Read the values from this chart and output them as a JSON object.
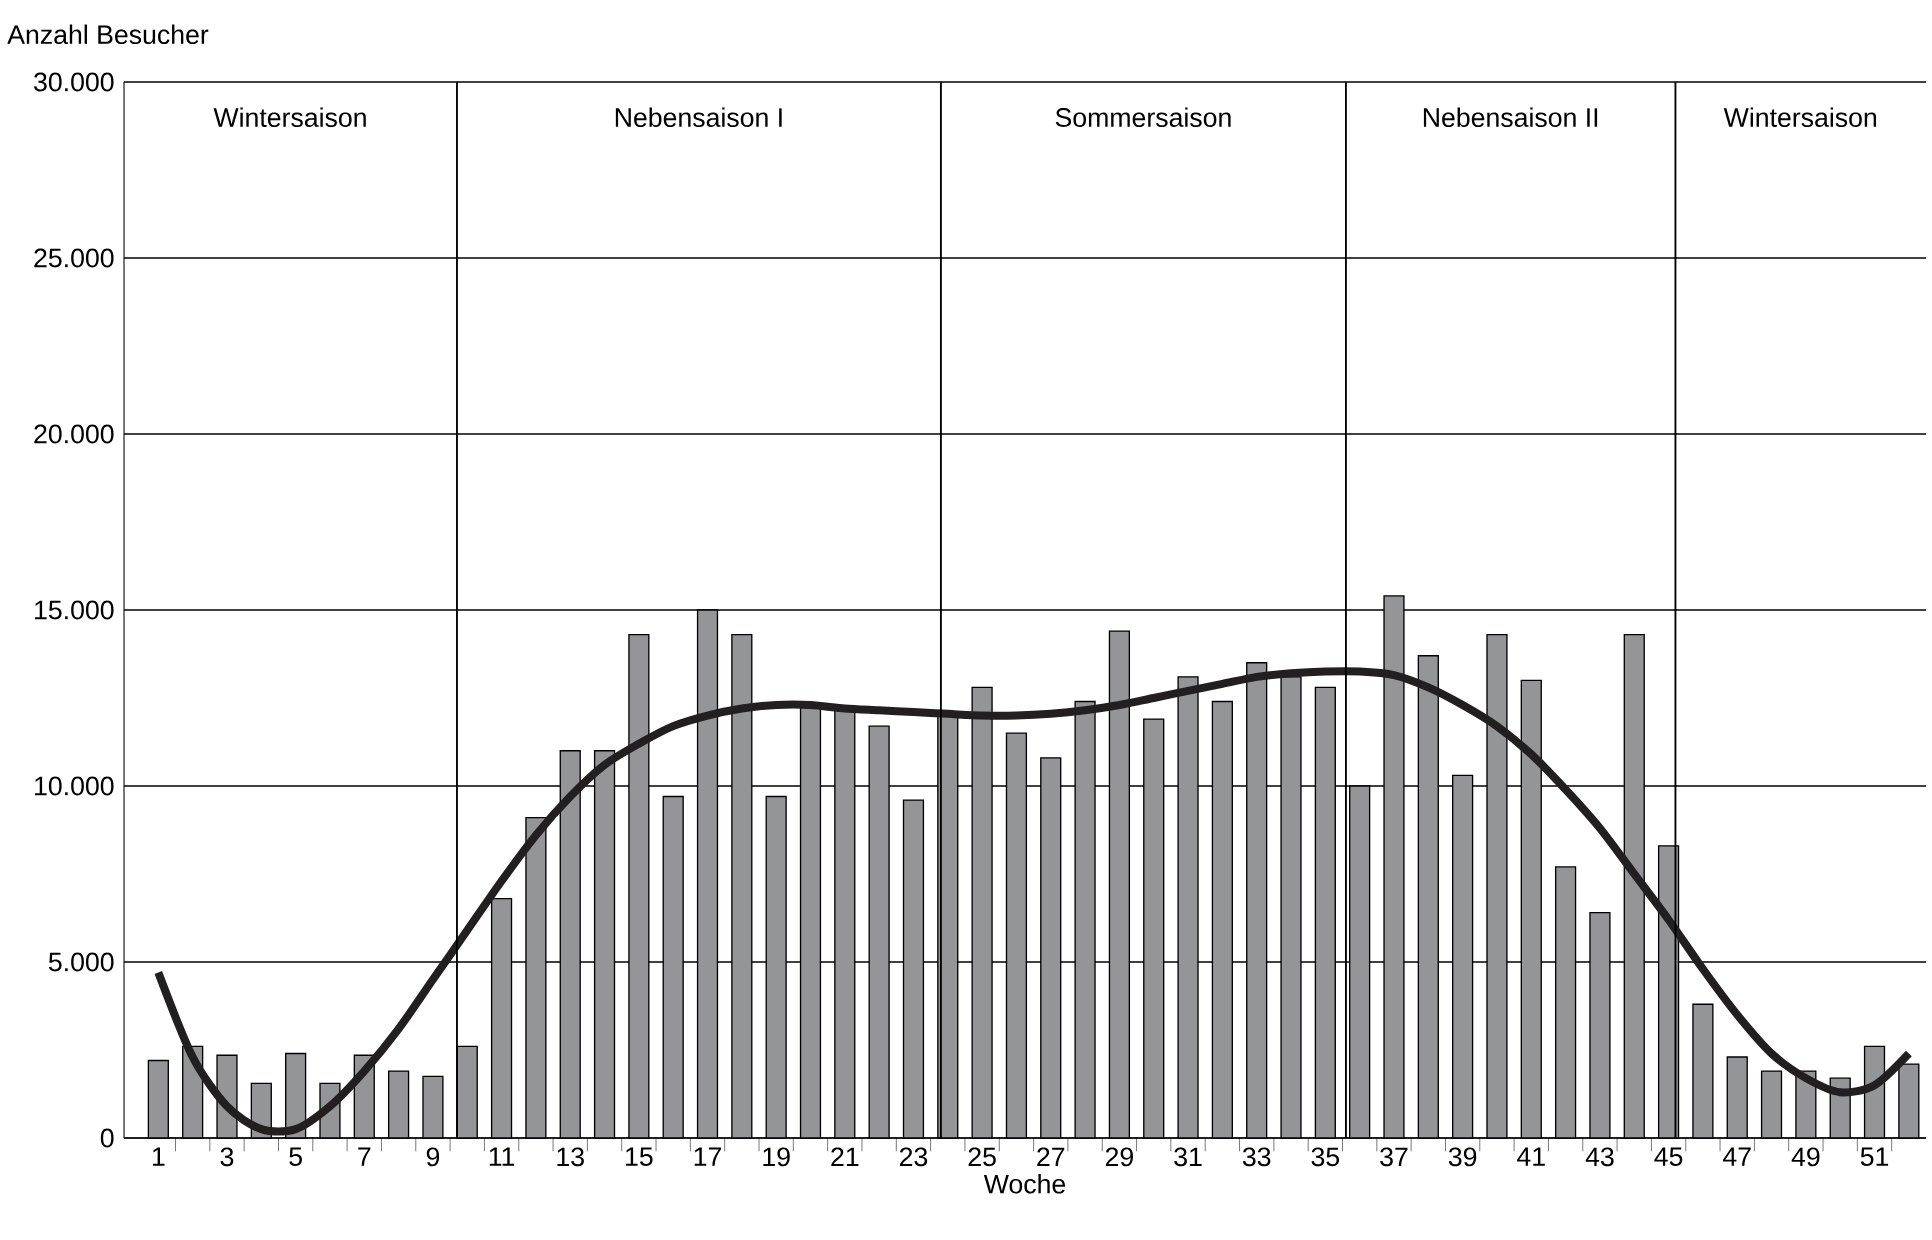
{
  "chart_data": {
    "type": "bar",
    "ylabel": "Anzahl Besucher",
    "xlabel": "Woche",
    "x": [
      1,
      2,
      3,
      4,
      5,
      6,
      7,
      8,
      9,
      10,
      11,
      12,
      13,
      14,
      15,
      16,
      17,
      18,
      19,
      20,
      21,
      22,
      23,
      24,
      25,
      26,
      27,
      28,
      29,
      30,
      31,
      32,
      33,
      34,
      35,
      36,
      37,
      38,
      39,
      40,
      41,
      42,
      43,
      44,
      45,
      46,
      47,
      48,
      49,
      50,
      51,
      52
    ],
    "xlim": [
      0,
      52.5
    ],
    "xticks": [
      1,
      3,
      5,
      7,
      9,
      11,
      13,
      15,
      17,
      19,
      21,
      23,
      25,
      27,
      29,
      31,
      33,
      35,
      37,
      39,
      41,
      43,
      45,
      47,
      49,
      51
    ],
    "ylim": [
      0,
      30000
    ],
    "yticks": [
      0,
      {
        "value": 5000,
        "label": "5.000"
      },
      {
        "value": 10000,
        "label": "10.000"
      },
      {
        "value": 15000,
        "label": "15.000"
      },
      {
        "value": 20000,
        "label": "20.000"
      },
      {
        "value": 25000,
        "label": "25.000"
      },
      {
        "value": 30000,
        "label": "30.000"
      }
    ],
    "grid": "y",
    "series": [
      {
        "color": "#939598",
        "values": [
          2200,
          2600,
          2350,
          1550,
          2400,
          1550,
          2350,
          1900,
          1750,
          2600,
          6800,
          9100,
          11000,
          11000,
          14300,
          9700,
          15000,
          14300,
          9700,
          12300,
          12200,
          11700,
          9600,
          12000,
          12800,
          11500,
          10800,
          12400,
          14400,
          11900,
          13100,
          12400,
          13500,
          13100,
          12800,
          10000,
          15400,
          13700,
          10300,
          14300,
          13000,
          7700,
          6400,
          14300,
          8300,
          3800,
          2300,
          1900,
          1900,
          1700,
          2600,
          2100
        ]
      },
      {
        "type": "line",
        "color": "#231f20",
        "values": [
          4700,
          2300,
          900,
          250,
          250,
          900,
          1900,
          3100,
          4500,
          5900,
          7300,
          8600,
          9700,
          10600,
          11200,
          11700,
          12000,
          12200,
          12300,
          12300,
          12200,
          12150,
          12100,
          12050,
          12000,
          12000,
          12050,
          12150,
          12300,
          12500,
          12700,
          12900,
          13100,
          13200,
          13250,
          13250,
          13150,
          12800,
          12300,
          11700,
          10900,
          9900,
          8800,
          7500,
          6200,
          4800,
          3500,
          2400,
          1700,
          1300,
          1500,
          2400
        ]
      }
    ],
    "ref_lines": [
      {
        "axis": "x",
        "value": 9.7
      },
      {
        "axis": "x",
        "value": 23.8
      },
      {
        "axis": "x",
        "value": 35.6
      },
      {
        "axis": "x",
        "value": 45.2
      }
    ],
    "annotations": [
      "Wintersaison",
      "Nebensaison I",
      "Sommersaison",
      "Nebensaison II",
      "Wintersaison"
    ]
  }
}
